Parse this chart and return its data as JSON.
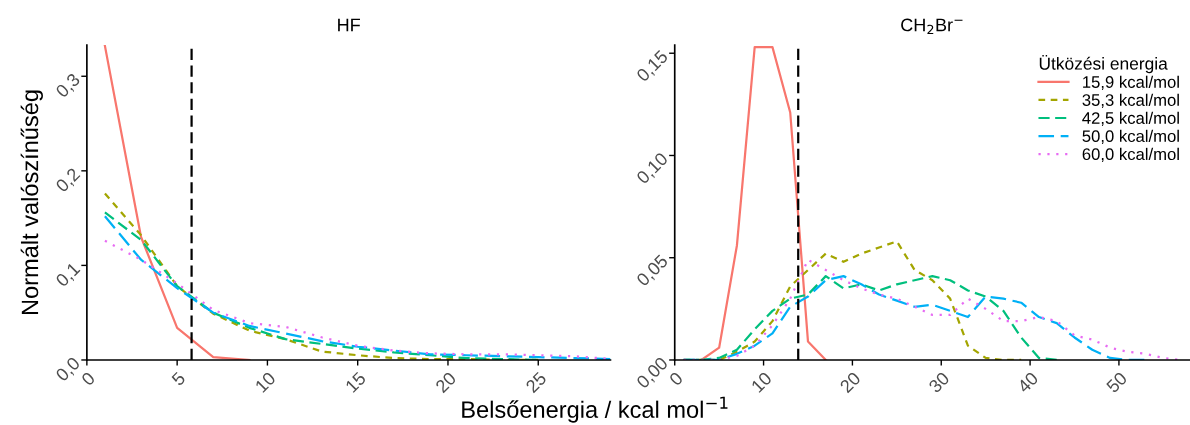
{
  "chart_data": [
    {
      "type": "line",
      "title": "HF",
      "xlabel": "Belsőenergia / kcal mol$^{−1}$",
      "ylabel": "Normált valószínűség",
      "x": [
        1,
        3,
        5,
        7,
        9,
        11,
        13,
        15,
        17,
        19,
        21,
        23,
        25,
        27,
        29
      ],
      "xlim": [
        0,
        29
      ],
      "xticks": [
        0,
        5,
        10,
        15,
        20,
        25
      ],
      "ylim": [
        0,
        0.333
      ],
      "yticks": [
        {
          "value": 0,
          "label": "0,0"
        },
        {
          "value": 0.1,
          "label": "0,1"
        },
        {
          "value": 0.2,
          "label": "0,2"
        },
        {
          "value": 0.3,
          "label": "0,3"
        }
      ],
      "grid": false,
      "legend": false,
      "ref_lines": [
        {
          "axis": "x",
          "value": 5.8,
          "color": "#000000",
          "line_style": "dashed"
        }
      ],
      "series": [
        {
          "color": "#f8766d",
          "line_style": "solid",
          "values": [
            0.332,
            0.13,
            0.034,
            0.003,
            0,
            null,
            null,
            null,
            null,
            null,
            null,
            null,
            null,
            null,
            null
          ]
        },
        {
          "color": "#a3a500",
          "line_style": "dashed",
          "values": [
            0.176,
            0.132,
            0.078,
            0.049,
            0.031,
            0.022,
            0.009,
            0.005,
            0.002,
            0.001,
            0.001,
            0,
            0,
            null,
            null
          ]
        },
        {
          "color": "#00bf7d",
          "line_style": "dashed",
          "values": [
            0.156,
            0.127,
            0.078,
            0.05,
            0.034,
            0.022,
            0.017,
            0.012,
            0.008,
            0.005,
            0.002,
            0.001,
            0,
            null,
            null
          ]
        },
        {
          "color": "#00b0f6",
          "line_style": "dashed",
          "values": [
            0.152,
            0.106,
            0.076,
            0.05,
            0.036,
            0.028,
            0.02,
            0.014,
            0.01,
            0.006,
            0.005,
            0.004,
            0.003,
            0.002,
            0.001
          ]
        },
        {
          "color": "#e76bf3",
          "line_style": "dotted",
          "values": [
            0.126,
            0.106,
            0.081,
            0.053,
            0.039,
            0.035,
            0.024,
            0.015,
            0.01,
            0.007,
            0.006,
            0.006,
            0.005,
            0.004,
            0.001
          ]
        }
      ]
    },
    {
      "type": "line",
      "title": "CH$_{2}$Br$^{−}$",
      "legend_title": "Ütközési energia",
      "x": [
        1,
        3,
        5,
        7,
        9,
        11,
        13,
        15,
        17,
        19,
        21,
        23,
        25,
        27,
        29,
        31,
        33,
        35,
        37,
        39,
        41,
        43,
        45,
        47,
        49,
        51,
        53,
        55,
        57
      ],
      "xlim": [
        0,
        58
      ],
      "xticks": [
        0,
        10,
        20,
        30,
        40,
        50
      ],
      "ylim": [
        0,
        0.154
      ],
      "yticks": [
        {
          "value": 0,
          "label": "0,00"
        },
        {
          "value": 0.05,
          "label": "0,05"
        },
        {
          "value": 0.1,
          "label": "0,10"
        },
        {
          "value": 0.15,
          "label": "0,15"
        }
      ],
      "grid": false,
      "legend": "top right",
      "ref_lines": [
        {
          "axis": "x",
          "value": 13.9,
          "color": "#000000",
          "line_style": "dashed"
        }
      ],
      "series": [
        {
          "name": "15,9 kcal/mol",
          "color": "#f8766d",
          "line_style": "solid",
          "values": [
            null,
            0,
            0.006,
            0.056,
            0.153,
            0.153,
            0.121,
            0.009,
            0,
            null,
            null,
            null,
            null,
            null,
            null,
            null,
            null,
            null,
            null,
            null,
            null,
            null,
            null,
            null,
            null,
            null,
            null,
            null,
            null
          ]
        },
        {
          "name": "35,3 kcal/mol",
          "color": "#a3a500",
          "line_style": "dashed",
          "values": [
            0,
            0,
            0,
            0.004,
            0.009,
            0.019,
            0.036,
            0.044,
            0.052,
            0.048,
            0.052,
            0.055,
            0.058,
            0.044,
            0.039,
            0.03,
            0.007,
            0.001,
            0,
            0,
            null,
            null,
            null,
            null,
            null,
            null,
            null,
            null,
            null
          ]
        },
        {
          "name": "42,5 kcal/mol",
          "color": "#00bf7d",
          "line_style": "dashed",
          "values": [
            0,
            0,
            0.001,
            0.005,
            0.015,
            0.024,
            0.03,
            0.032,
            0.041,
            0.035,
            0.037,
            0.034,
            0.037,
            0.039,
            0.041,
            0.039,
            0.034,
            0.031,
            0.024,
            0.011,
            0.001,
            0,
            null,
            null,
            null,
            null,
            null,
            null,
            null
          ]
        },
        {
          "name": "50,0 kcal/mol",
          "color": "#00b0f6",
          "line_style": "dashed",
          "values": [
            0,
            0,
            0,
            0.003,
            0.007,
            0.013,
            0.026,
            0.031,
            0.039,
            0.041,
            0.037,
            0.032,
            0.029,
            0.026,
            0.027,
            0.024,
            0.021,
            0.031,
            0.03,
            0.028,
            0.021,
            0.018,
            0.011,
            0.005,
            0.001,
            0,
            0,
            null,
            null
          ]
        },
        {
          "name": "60,0 kcal/mol",
          "color": "#e76bf3",
          "line_style": "dotted",
          "values": [
            0,
            0,
            0,
            0.002,
            0.007,
            0.017,
            0.03,
            0.049,
            0.044,
            0.039,
            0.035,
            0.032,
            0.03,
            0.026,
            0.022,
            0.022,
            0.03,
            0.025,
            0.019,
            0.019,
            0.021,
            0.019,
            0.012,
            0.01,
            0.006,
            0.004,
            0.003,
            0.001,
            0
          ]
        }
      ]
    }
  ]
}
